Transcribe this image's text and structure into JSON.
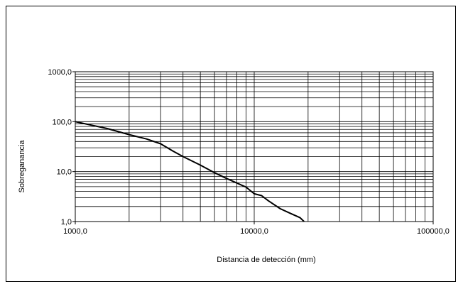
{
  "chart_data": {
    "type": "line",
    "title": "",
    "xlabel": "Distancia de detección (mm)",
    "ylabel": "Sobreganancia",
    "xscale": "log",
    "yscale": "log",
    "xlim": [
      1000,
      100000
    ],
    "ylim": [
      1,
      1000
    ],
    "grid": true,
    "xticks": [
      {
        "value": 1000,
        "label": "1000,0"
      },
      {
        "value": 10000,
        "label": "10000,0"
      },
      {
        "value": 100000,
        "label": "100000,0"
      }
    ],
    "yticks": [
      {
        "value": 1,
        "label": "1,0"
      },
      {
        "value": 10,
        "label": "10,0"
      },
      {
        "value": 100,
        "label": "100,0"
      },
      {
        "value": 1000,
        "label": "1000,0"
      }
    ],
    "series": [
      {
        "x": [
          1000,
          1500,
          2000,
          2500,
          3000,
          3500,
          4000,
          5000,
          6000,
          7000,
          8000,
          9000,
          10000,
          11000,
          12000,
          14000,
          16000,
          18000,
          19000
        ],
        "y": [
          100,
          73,
          55,
          45,
          36,
          26,
          20,
          13.5,
          9.5,
          7.3,
          5.9,
          4.9,
          3.6,
          3.3,
          2.6,
          1.8,
          1.45,
          1.2,
          1.0
        ],
        "color": "#000000"
      }
    ]
  }
}
